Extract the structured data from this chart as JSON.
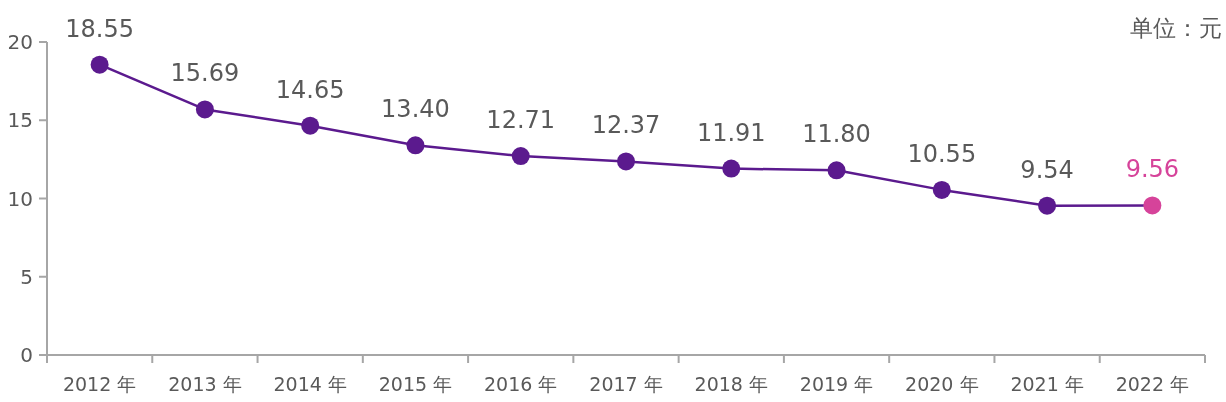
{
  "chart_data": {
    "type": "line",
    "categories": [
      "2012 年",
      "2013 年",
      "2014 年",
      "2015 年",
      "2016 年",
      "2017 年",
      "2018 年",
      "2019 年",
      "2020 年",
      "2021 年",
      "2022 年"
    ],
    "series": [
      {
        "color": "#5b1a8e",
        "colors": [
          "#5b1a8e",
          "#5b1a8e",
          "#5b1a8e",
          "#5b1a8e",
          "#5b1a8e",
          "#5b1a8e",
          "#5b1a8e",
          "#5b1a8e",
          "#5b1a8e",
          "#5b1a8e",
          "#d6439a"
        ],
        "values": [
          18.55,
          15.69,
          14.65,
          13.4,
          12.71,
          12.37,
          11.91,
          11.8,
          10.55,
          9.54,
          9.56
        ],
        "value_labels": [
          "18.55",
          "15.69",
          "14.65",
          "13.40",
          "12.71",
          "12.37",
          "11.91",
          "11.80",
          "10.55",
          "9.54",
          "9.56"
        ]
      }
    ],
    "ylim": [
      0,
      20
    ],
    "yticks": [
      0,
      5,
      10,
      15,
      20
    ],
    "marker": "circle",
    "line_style": "solid",
    "grid": false,
    "annotations": [
      "单位：元"
    ]
  }
}
